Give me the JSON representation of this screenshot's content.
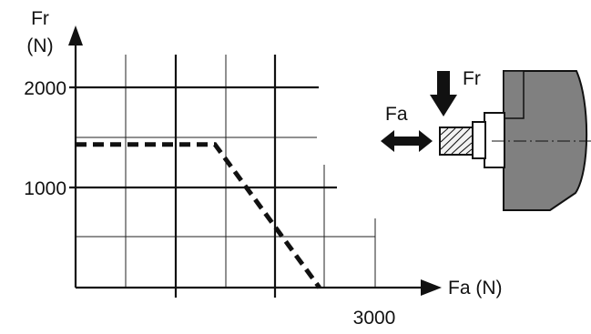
{
  "chart_data": {
    "type": "line",
    "ylabel_line1": "Fr",
    "ylabel_line2": "(N)",
    "xlabel": "Fa (N)",
    "y_tick_labels": [
      "2000",
      "1000"
    ],
    "x_tick_labels": [
      "3000"
    ],
    "xlim": [
      0,
      4000
    ],
    "ylim": [
      0,
      2500
    ],
    "grid": true,
    "series": [
      {
        "style": "dashed",
        "x": [
          0,
          1400,
          2450
        ],
        "y": [
          1430,
          1430,
          0
        ]
      }
    ],
    "inset": {
      "force_radial_label": "Fr",
      "force_axial_label": "Fa"
    }
  },
  "colors": {
    "ink": "#111111",
    "body_fill": "#808080",
    "hatch_fill": "#f2f2f2"
  }
}
